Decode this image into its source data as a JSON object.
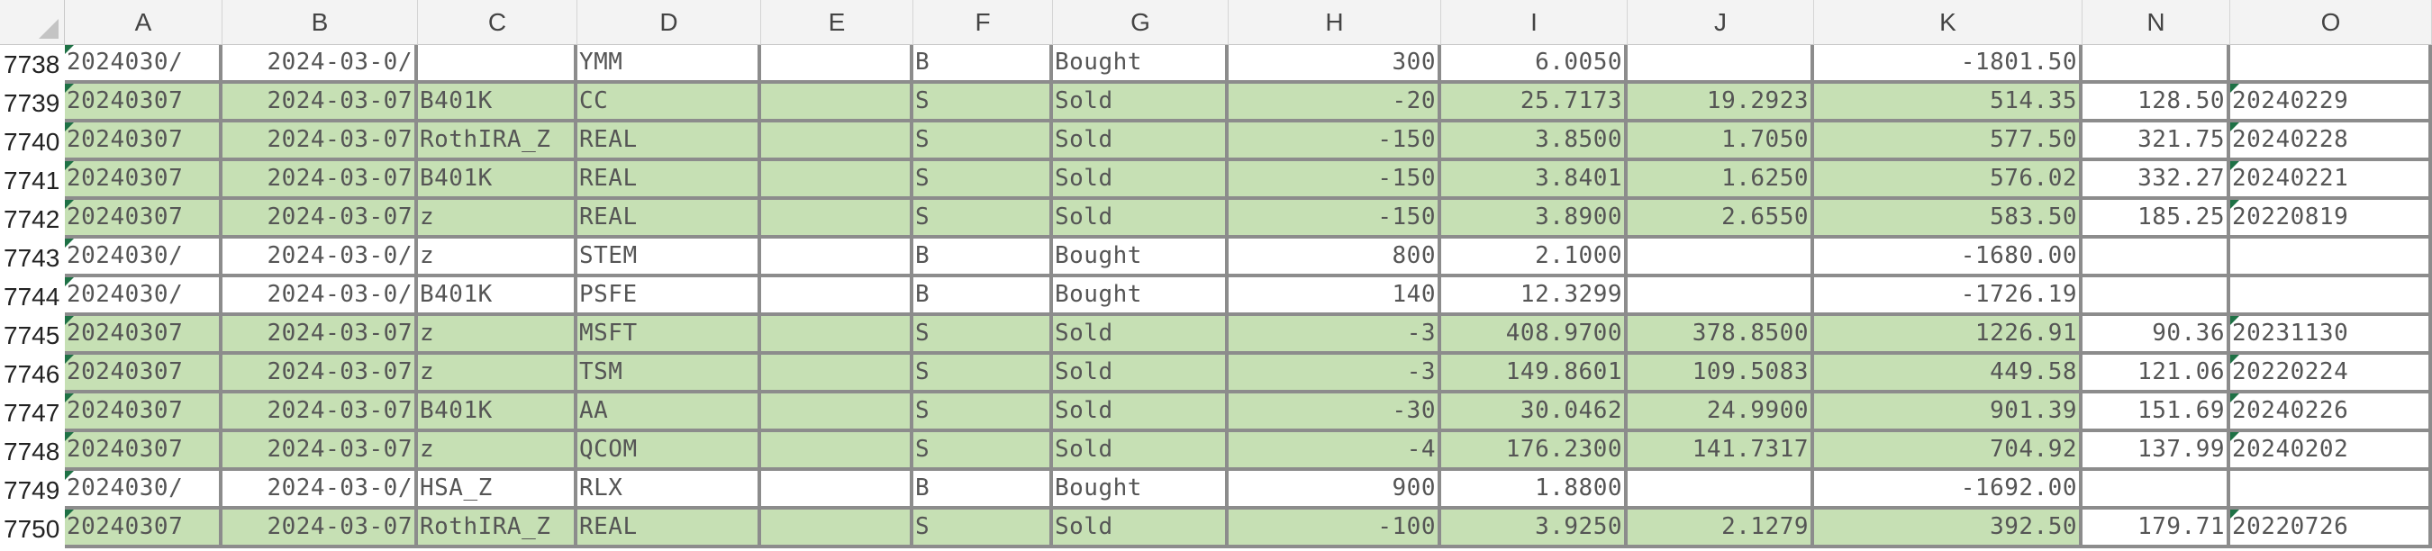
{
  "columns": [
    "A",
    "B",
    "C",
    "D",
    "E",
    "F",
    "G",
    "H",
    "I",
    "J",
    "K",
    "N",
    "O"
  ],
  "rows": [
    {
      "num": "7738",
      "green": false,
      "a": "2024030/",
      "b": "2024-03-0/",
      "c": "",
      "d": "YMM",
      "e": "",
      "f": "B",
      "g": "Bought",
      "h": "300",
      "i": "6.0050",
      "j": "",
      "k": "-1801.50",
      "n": "",
      "o": ""
    },
    {
      "num": "7739",
      "green": true,
      "a": "20240307",
      "b": "2024-03-07",
      "c": "B401K",
      "d": "CC",
      "e": "",
      "f": "S",
      "g": "Sold",
      "h": "-20",
      "i": "25.7173",
      "j": "19.2923",
      "k": "514.35",
      "n": "128.50",
      "o": "20240229"
    },
    {
      "num": "7740",
      "green": true,
      "a": "20240307",
      "b": "2024-03-07",
      "c": "RothIRA_Z",
      "d": "REAL",
      "e": "",
      "f": "S",
      "g": "Sold",
      "h": "-150",
      "i": "3.8500",
      "j": "1.7050",
      "k": "577.50",
      "n": "321.75",
      "o": "20240228"
    },
    {
      "num": "7741",
      "green": true,
      "a": "20240307",
      "b": "2024-03-07",
      "c": "B401K",
      "d": "REAL",
      "e": "",
      "f": "S",
      "g": "Sold",
      "h": "-150",
      "i": "3.8401",
      "j": "1.6250",
      "k": "576.02",
      "n": "332.27",
      "o": "20240221"
    },
    {
      "num": "7742",
      "green": true,
      "a": "20240307",
      "b": "2024-03-07",
      "c": "z",
      "d": "REAL",
      "e": "",
      "f": "S",
      "g": "Sold",
      "h": "-150",
      "i": "3.8900",
      "j": "2.6550",
      "k": "583.50",
      "n": "185.25",
      "o": "20220819"
    },
    {
      "num": "7743",
      "green": false,
      "a": "2024030/",
      "b": "2024-03-0/",
      "c": "z",
      "d": "STEM",
      "e": "",
      "f": "B",
      "g": "Bought",
      "h": "800",
      "i": "2.1000",
      "j": "",
      "k": "-1680.00",
      "n": "",
      "o": ""
    },
    {
      "num": "7744",
      "green": false,
      "a": "2024030/",
      "b": "2024-03-0/",
      "c": "B401K",
      "d": "PSFE",
      "e": "",
      "f": "B",
      "g": "Bought",
      "h": "140",
      "i": "12.3299",
      "j": "",
      "k": "-1726.19",
      "n": "",
      "o": ""
    },
    {
      "num": "7745",
      "green": true,
      "a": "20240307",
      "b": "2024-03-07",
      "c": "z",
      "d": "MSFT",
      "e": "",
      "f": "S",
      "g": "Sold",
      "h": "-3",
      "i": "408.9700",
      "j": "378.8500",
      "k": "1226.91",
      "n": "90.36",
      "o": "20231130"
    },
    {
      "num": "7746",
      "green": true,
      "a": "20240307",
      "b": "2024-03-07",
      "c": "z",
      "d": "TSM",
      "e": "",
      "f": "S",
      "g": "Sold",
      "h": "-3",
      "i": "149.8601",
      "j": "109.5083",
      "k": "449.58",
      "n": "121.06",
      "o": "20220224"
    },
    {
      "num": "7747",
      "green": true,
      "a": "20240307",
      "b": "2024-03-07",
      "c": "B401K",
      "d": "AA",
      "e": "",
      "f": "S",
      "g": "Sold",
      "h": "-30",
      "i": "30.0462",
      "j": "24.9900",
      "k": "901.39",
      "n": "151.69",
      "o": "20240226"
    },
    {
      "num": "7748",
      "green": true,
      "a": "20240307",
      "b": "2024-03-07",
      "c": "z",
      "d": "QCOM",
      "e": "",
      "f": "S",
      "g": "Sold",
      "h": "-4",
      "i": "176.2300",
      "j": "141.7317",
      "k": "704.92",
      "n": "137.99",
      "o": "20240202"
    },
    {
      "num": "7749",
      "green": false,
      "a": "2024030/",
      "b": "2024-03-0/",
      "c": "HSA_Z",
      "d": "RLX",
      "e": "",
      "f": "B",
      "g": "Bought",
      "h": "900",
      "i": "1.8800",
      "j": "",
      "k": "-1692.00",
      "n": "",
      "o": ""
    },
    {
      "num": "7750",
      "green": true,
      "a": "20240307",
      "b": "2024-03-07",
      "c": "RothIRA_Z",
      "d": "REAL",
      "e": "",
      "f": "S",
      "g": "Sold",
      "h": "-100",
      "i": "3.9250",
      "j": "2.1279",
      "k": "392.50",
      "n": "179.71",
      "o": "20220726"
    }
  ]
}
